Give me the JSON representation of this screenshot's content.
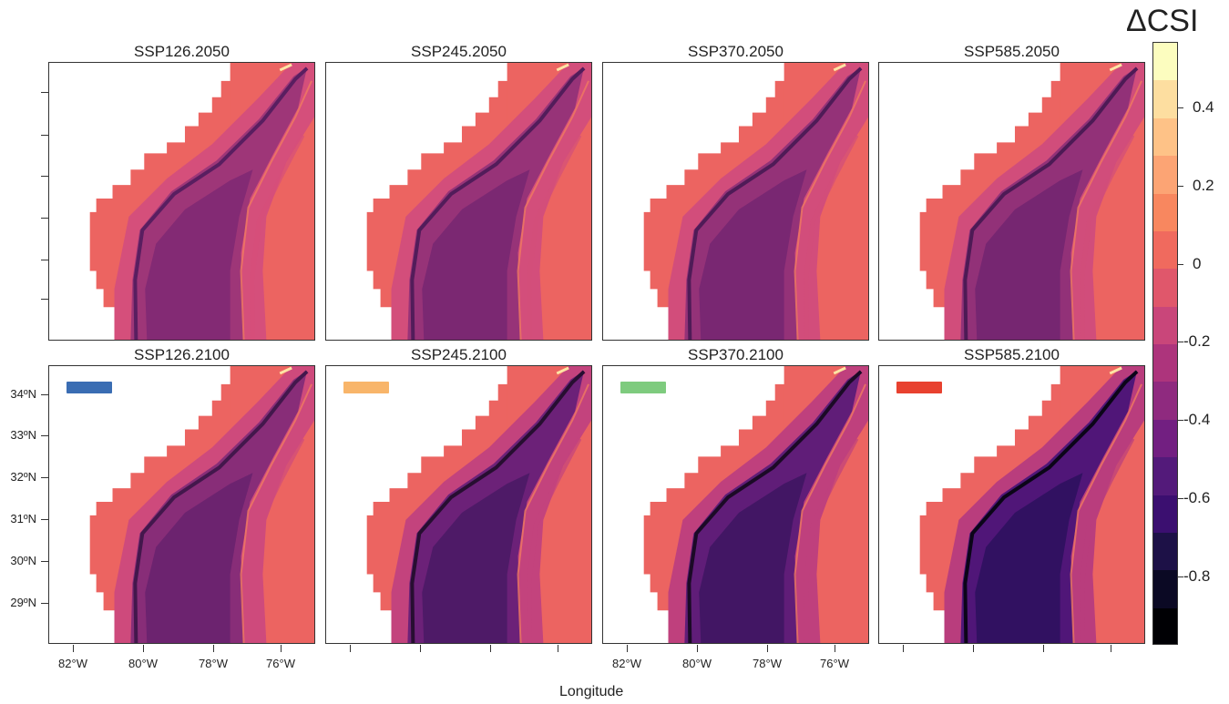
{
  "panels": [
    {
      "title": "SSP126.2050",
      "intensity": 0.3
    },
    {
      "title": "SSP245.2050",
      "intensity": 0.36
    },
    {
      "title": "SSP370.2050",
      "intensity": 0.38
    },
    {
      "title": "SSP585.2050",
      "intensity": 0.4
    },
    {
      "title": "SSP126.2100",
      "intensity": 0.48,
      "legend_color": "#3a6db3"
    },
    {
      "title": "SSP245.2100",
      "intensity": 0.72,
      "legend_color": "#f8b56a"
    },
    {
      "title": "SSP370.2100",
      "intensity": 0.82,
      "legend_color": "#7ecb7e"
    },
    {
      "title": "SSP585.2100",
      "intensity": 0.95,
      "legend_color": "#e8412f"
    }
  ],
  "lat_labels": [
    "34ºN",
    "33ºN",
    "32ºN",
    "31ºN",
    "30ºN",
    "29ºN"
  ],
  "lon_labels": [
    "82°W",
    "80°W",
    "78°W",
    "76°W"
  ],
  "x_axis_title": "Longitude",
  "colorbar": {
    "title": "ΔCSI",
    "labels": [
      "0.4",
      "0.2",
      "0",
      "-0.2",
      "-0.4",
      "-0.6",
      "-0.8"
    ],
    "colors": [
      "#fcfdbf",
      "#fddea0",
      "#fec287",
      "#fca474",
      "#f8875f",
      "#f06a5e",
      "#e0576b",
      "#c9467a",
      "#ad347c",
      "#8f2a7f",
      "#721f81",
      "#531a7a",
      "#3b0f70",
      "#1d1147",
      "#0b0924",
      "#000004"
    ]
  }
}
